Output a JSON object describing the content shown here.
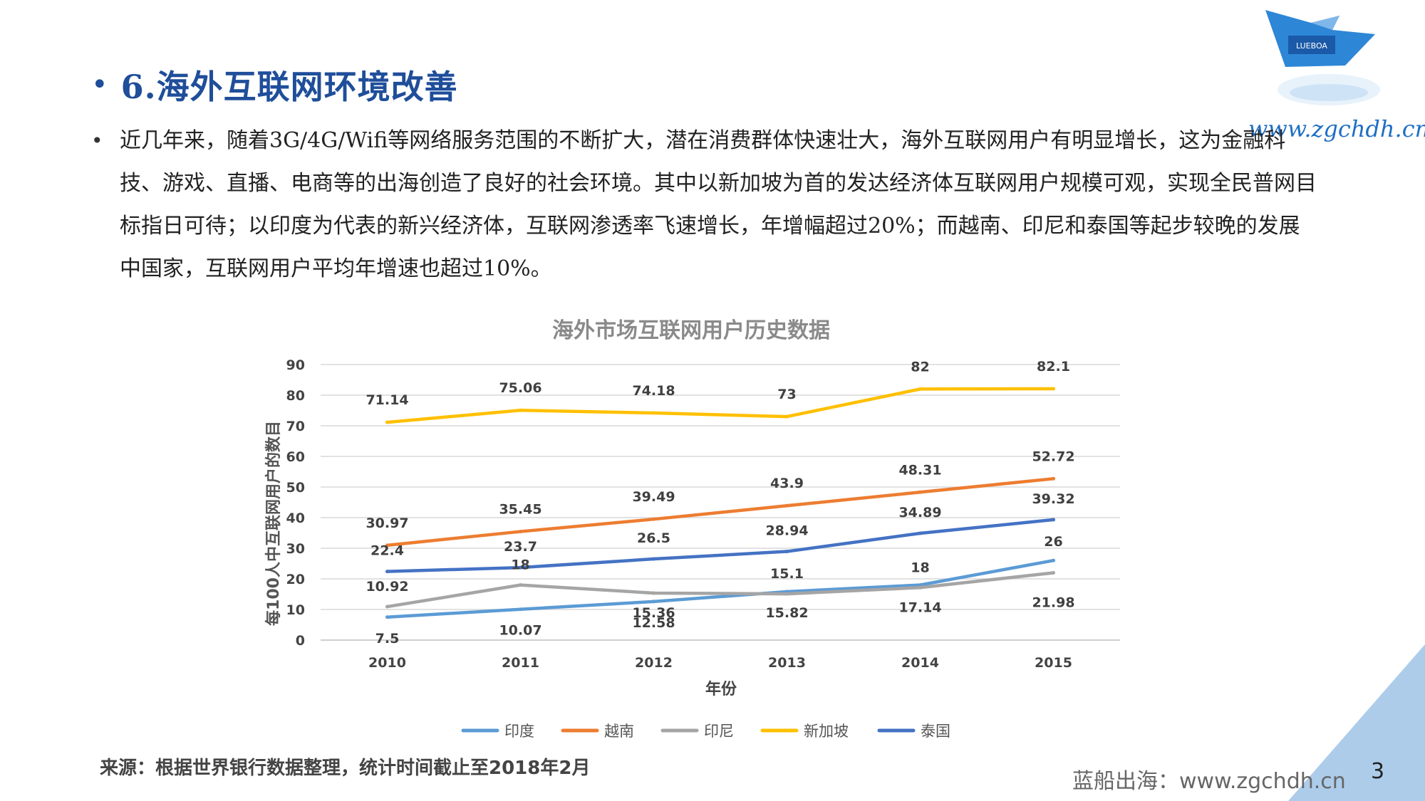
{
  "slide": {
    "title": "6.海外互联网环境改善",
    "body": "近几年来，随着3G/4G/Wifi等网络服务范围的不断扩大，潜在消费群体快速壮大，海外互联网用户有明显增长，这为金融科技、游戏、直播、电商等的出海创造了良好的社会环境。其中以新加坡为首的发达经济体互联网用户规模可观，实现全民普网目标指日可待；以印度为代表的新兴经济体，互联网渗透率飞速增长，年增幅超过20%；而越南、印尼和泰国等起步较晚的发展中国家，互联网用户平均年增速也超过10%。",
    "source": "来源：根据世界银行数据整理，统计时间截止至2018年2月",
    "footer_brand": "蓝船出海：www.zgchdh.cn",
    "page_number": "3",
    "watermark": "www.zgchdh.cn",
    "logo_text": "LUEBOA"
  },
  "chart_data": {
    "type": "line",
    "title": "海外市场互联网用户历史数据",
    "xlabel": "年份",
    "ylabel": "每100人中互联网用户的数目",
    "categories": [
      "2010",
      "2011",
      "2012",
      "2013",
      "2014",
      "2015"
    ],
    "ylim": [
      0,
      90
    ],
    "yticks": [
      0,
      10,
      20,
      30,
      40,
      50,
      60,
      70,
      80,
      90
    ],
    "grid": true,
    "legend_position": "bottom",
    "series": [
      {
        "name": "印度",
        "color": "#5b9bd5",
        "values": [
          7.5,
          10.07,
          12.58,
          15.82,
          18,
          26
        ]
      },
      {
        "name": "越南",
        "color": "#ed7d31",
        "values": [
          30.97,
          35.45,
          39.49,
          43.9,
          48.31,
          52.72
        ]
      },
      {
        "name": "印尼",
        "color": "#a5a5a5",
        "values": [
          10.92,
          18,
          15.36,
          15.1,
          17.14,
          21.98
        ]
      },
      {
        "name": "新加坡",
        "color": "#ffc000",
        "values": [
          71.14,
          75.06,
          74.18,
          73,
          82,
          82.1
        ]
      },
      {
        "name": "泰国",
        "color": "#4472c4",
        "values": [
          22.4,
          23.7,
          26.5,
          28.94,
          34.89,
          39.32
        ]
      }
    ]
  },
  "colors": {
    "title": "#1f4e9a",
    "accent": "#1f6fc4",
    "corner_triangle": "#9dc3e6"
  }
}
